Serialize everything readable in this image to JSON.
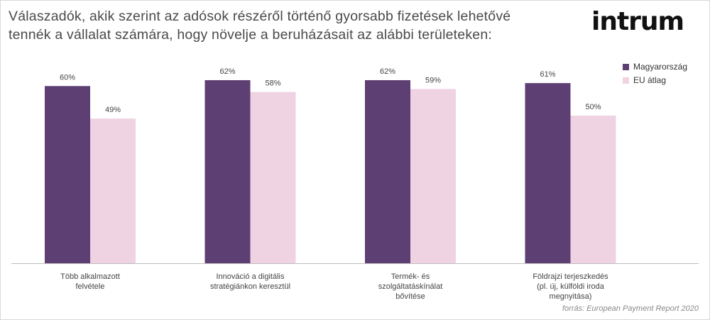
{
  "title_line1": "Válaszadók, akik szerint az adósok részéről történő gyorsabb fizetések lehetővé",
  "title_line2": "tennék a vállalat számára, hogy növelje a beruházásait az alábbi területeken:",
  "brand": "intrum",
  "source": "forrás: European Payment Report 2020",
  "colors": {
    "series1": "#5e3f73",
    "series2": "#efd3e3",
    "axis": "#bdbdbd",
    "text": "#444444"
  },
  "chart_data": {
    "type": "bar",
    "categories": [
      [
        "Több alkalmazott",
        "felvétele"
      ],
      [
        "Innováció a digitális",
        "stratégiánkon keresztül"
      ],
      [
        "Termék- és",
        "szolgáltatáskínálat",
        "bővítése"
      ],
      [
        "Földrajzi terjeszkedés",
        "(pl. új, külföldi iroda",
        "megnyitása)"
      ]
    ],
    "series": [
      {
        "name": "Magyarország",
        "values": [
          60,
          62,
          62,
          61
        ],
        "labels": [
          "60%",
          "62%",
          "62%",
          "61%"
        ]
      },
      {
        "name": "EU átlag",
        "values": [
          49,
          58,
          59,
          50
        ],
        "labels": [
          "49%",
          "58%",
          "59%",
          "50%"
        ]
      }
    ],
    "ylim": [
      0,
      68
    ],
    "legend": "top-right",
    "grid": false
  }
}
